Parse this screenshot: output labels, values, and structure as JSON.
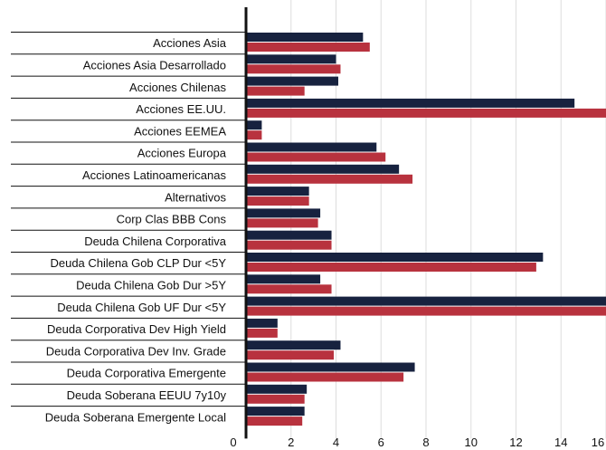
{
  "chart_data": {
    "type": "bar",
    "orientation": "horizontal",
    "title": "",
    "xlabel": "",
    "ylabel": "",
    "xlim": [
      0,
      16
    ],
    "xticks": [
      0,
      2,
      4,
      6,
      8,
      10,
      12,
      14,
      16
    ],
    "grid": "vertical",
    "legend": "none",
    "categories": [
      "Acciones Asia",
      "Acciones Asia Desarrollado",
      "Acciones Chilenas",
      "Acciones EE.UU.",
      "Acciones EEMEA",
      "Acciones Europa",
      "Acciones Latinoamericanas",
      "Alternativos",
      "Corp Clas BBB Cons",
      "Deuda Chilena Corporativa",
      "Deuda Chilena Gob CLP Dur <5Y",
      "Deuda Chilena Gob Dur >5Y",
      "Deuda Chilena Gob UF Dur <5Y",
      "Deuda Corporativa Dev High Yield",
      "Deuda Corporativa Dev Inv. Grade",
      "Deuda Corporativa Emergente",
      "Deuda Soberana EEUU 7y10y",
      "Deuda Soberana Emergente Local"
    ],
    "series": [
      {
        "color": "#17223f",
        "values": [
          5.2,
          4.0,
          4.1,
          14.6,
          0.7,
          5.8,
          6.8,
          2.8,
          3.3,
          3.8,
          13.2,
          3.3,
          16.0,
          1.4,
          4.2,
          7.5,
          2.7,
          2.6
        ]
      },
      {
        "color": "#b8323e",
        "values": [
          5.5,
          4.2,
          2.6,
          16.0,
          0.7,
          6.2,
          7.4,
          2.8,
          3.2,
          3.8,
          12.9,
          3.8,
          16.0,
          1.4,
          3.9,
          7.0,
          2.6,
          2.5
        ]
      }
    ],
    "colors": {
      "grid": "#dddddd",
      "axis": "#111111",
      "separator": "#111111"
    }
  }
}
